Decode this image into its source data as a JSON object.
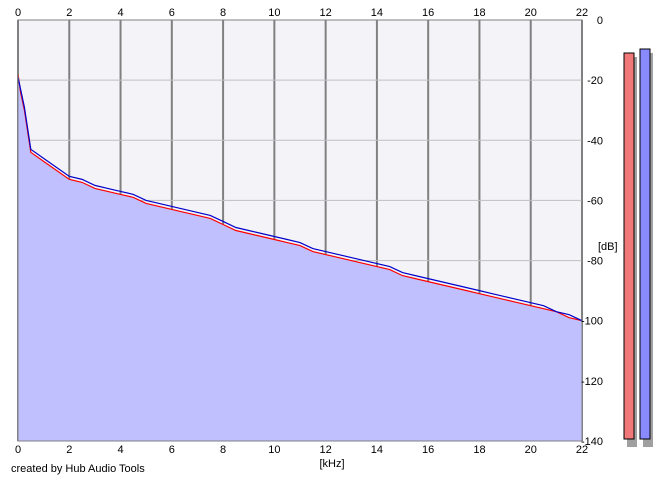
{
  "chart_data": {
    "type": "area",
    "xlabel": "[kHz]",
    "ylabel": "[dB]",
    "xlim": [
      0,
      22
    ],
    "ylim": [
      -140,
      0
    ],
    "x_ticks": [
      "0",
      "2",
      "4",
      "6",
      "8",
      "10",
      "12",
      "14",
      "16",
      "18",
      "20",
      "22"
    ],
    "y_ticks": [
      "0",
      "-20",
      "-40",
      "-60",
      "-80",
      "-100",
      "-120",
      "-140"
    ],
    "grid": true,
    "fill_color": "#c0c0ff",
    "series": [
      {
        "color": "#ff0000",
        "x": [
          0,
          0.1,
          0.25,
          0.5,
          1,
          1.5,
          2,
          2.5,
          3,
          3.5,
          4,
          4.5,
          5,
          5.5,
          6,
          6.5,
          7,
          7.5,
          8,
          8.5,
          9,
          9.5,
          10,
          10.5,
          11,
          11.5,
          12,
          12.5,
          13,
          13.5,
          14,
          14.5,
          15,
          15.5,
          16,
          16.5,
          17,
          17.5,
          18,
          18.5,
          19,
          19.5,
          20,
          20.5,
          21,
          21.5,
          22
        ],
        "y": [
          -18,
          -24,
          -30,
          -44,
          -47,
          -50,
          -53,
          -54,
          -56,
          -57,
          -58,
          -59,
          -61,
          -62,
          -63,
          -64,
          -65,
          -66,
          -68,
          -70,
          -71,
          -72,
          -73,
          -74,
          -75,
          -77,
          -78,
          -79,
          -80,
          -81,
          -82,
          -83,
          -85,
          -86,
          -87,
          -88,
          -89,
          -90,
          -91,
          -92,
          -93,
          -94,
          -95,
          -96,
          -97,
          -99,
          -100
        ]
      },
      {
        "color": "#0000cc",
        "x": [
          0,
          0.1,
          0.25,
          0.5,
          1,
          1.5,
          2,
          2.5,
          3,
          3.5,
          4,
          4.5,
          5,
          5.5,
          6,
          6.5,
          7,
          7.5,
          8,
          8.5,
          9,
          9.5,
          10,
          10.5,
          11,
          11.5,
          12,
          12.5,
          13,
          13.5,
          14,
          14.5,
          15,
          15.5,
          16,
          16.5,
          17,
          17.5,
          18,
          18.5,
          19,
          19.5,
          20,
          20.5,
          21,
          21.5,
          22
        ],
        "y": [
          -19,
          -23,
          -29,
          -43,
          -46,
          -49,
          -52,
          -53,
          -55,
          -56,
          -57,
          -58,
          -60,
          -61,
          -62,
          -63,
          -64,
          -65,
          -67,
          -69,
          -70,
          -71,
          -72,
          -73,
          -74,
          -76,
          -77,
          -78,
          -79,
          -80,
          -81,
          -82,
          -84,
          -85,
          -86,
          -87,
          -88,
          -89,
          -90,
          -91,
          -92,
          -93,
          -94,
          -95,
          -97,
          -98,
          -100
        ]
      }
    ]
  },
  "meters": {
    "left": {
      "color": "#f07878"
    },
    "right": {
      "color": "#8a8aff"
    }
  },
  "footer": "created by Hub Audio Tools"
}
